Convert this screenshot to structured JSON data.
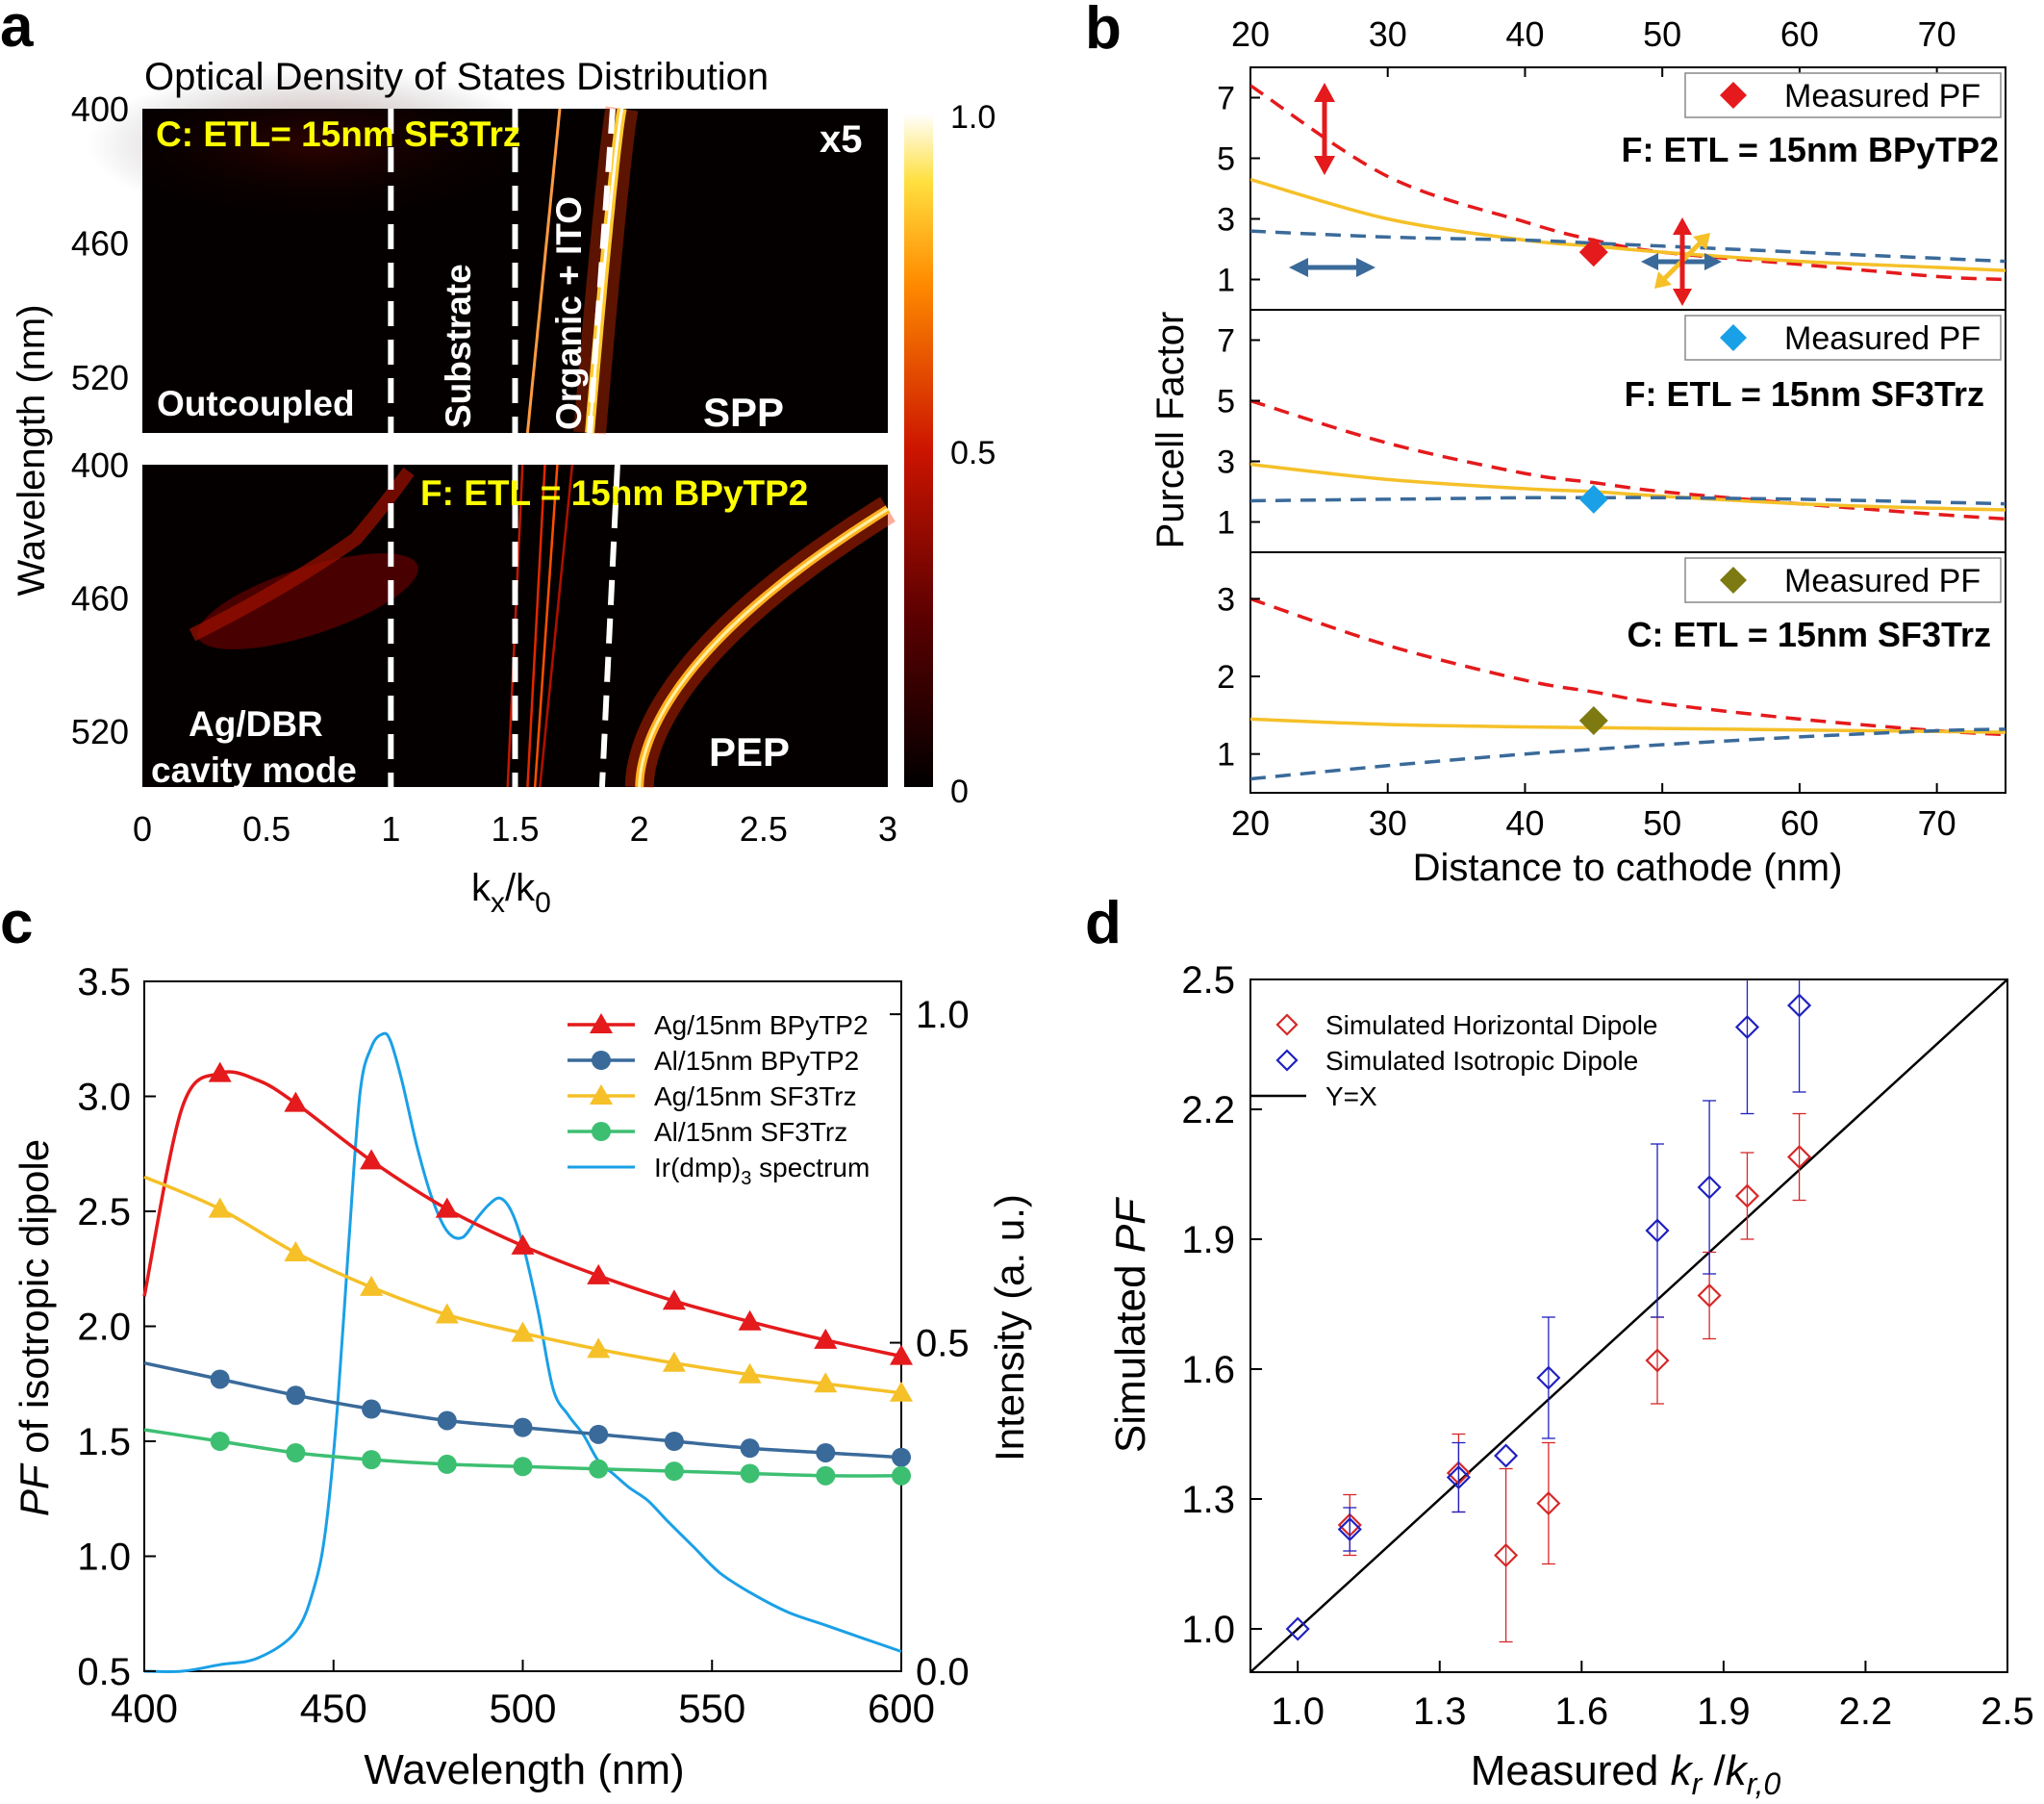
{
  "panels": {
    "a": "a",
    "b": "b",
    "c": "c",
    "d": "d"
  },
  "colors": {
    "red": "#e41a1c",
    "navy": "#3a6a9a",
    "gold": "#f5c028",
    "green": "#3dbf72",
    "blue": "#1aa0e6",
    "olive": "#7d7a12",
    "dred": "#d62828",
    "dblue": "#2020c0"
  },
  "chart_data": [
    {
      "type": "heatmap",
      "id": "a",
      "title": "Optical Density of States Distribution",
      "xlabel_main": "k",
      "xlabel_sub": "x",
      "xlabel_sep": "/k",
      "xlabel_sub2": "0",
      "ylabel": "Wavelength (nm)",
      "x_ticks": [
        "0",
        "0.5",
        "1",
        "1.5",
        "2",
        "2.5",
        "3"
      ],
      "xlim": [
        0,
        3
      ],
      "y_ticks": [
        "400",
        "460",
        "520"
      ],
      "y_tick_values": [
        400,
        460,
        520
      ],
      "ylim": [
        400,
        545
      ],
      "colorbar": {
        "ticks": [
          "1.0",
          "0.5",
          "0"
        ],
        "range": [
          0,
          1
        ]
      },
      "top": {
        "label": "C: ETL= 15nm SF3Trz",
        "scale_note": "x5",
        "regions": [
          "Outcoupled",
          "Substrate",
          "Organic + ITO",
          "SPP"
        ],
        "boundaries": [
          1.0,
          1.5,
          1.8
        ],
        "mode_kx_at_400": 1.93,
        "mode_kx_at_545": 1.8
      },
      "bottom": {
        "label": "F: ETL = 15nm BPyTP2",
        "regions_line1": "Ag/DBR",
        "regions_line2": "cavity mode",
        "pep_label": "PEP",
        "boundaries": [
          1.0,
          1.5,
          1.85
        ],
        "pep_kx_at_420": 3.0,
        "pep_kx_at_545": 2.0
      }
    },
    {
      "type": "line",
      "id": "b",
      "xlabel": "Distance to cathode (nm)",
      "ylabel": "Purcell Factor",
      "x_ticks": [
        20,
        30,
        40,
        50,
        60,
        70
      ],
      "xlim": [
        20,
        75
      ],
      "legend_label": "Measured PF",
      "subplots": [
        {
          "title": "F: ETL = 15nm BPyTP2",
          "ylim": [
            0,
            8
          ],
          "y_ticks": [
            1,
            3,
            5,
            7
          ],
          "marker_color": "red",
          "x": [
            20,
            30,
            40,
            45,
            50,
            60,
            70,
            75
          ],
          "series": [
            {
              "name": "horizontal",
              "style": "dashed",
              "color": "red",
              "values": [
                7.4,
                4.4,
                2.9,
                2.3,
                1.9,
                1.5,
                1.1,
                1.0
              ]
            },
            {
              "name": "isotropic",
              "style": "solid",
              "color": "gold",
              "values": [
                4.3,
                3.0,
                2.3,
                2.1,
                1.9,
                1.6,
                1.4,
                1.3
              ]
            },
            {
              "name": "vertical",
              "style": "dashed",
              "color": "navy",
              "values": [
                2.6,
                2.4,
                2.3,
                2.2,
                2.1,
                1.9,
                1.7,
                1.6
              ]
            }
          ],
          "measured": {
            "x": 45,
            "y": 1.9
          }
        },
        {
          "title": "F: ETL = 15nm SF3Trz",
          "ylim": [
            0,
            8
          ],
          "y_ticks": [
            1,
            3,
            5,
            7
          ],
          "marker_color": "blue",
          "x": [
            20,
            30,
            40,
            45,
            50,
            60,
            70,
            75
          ],
          "series": [
            {
              "name": "horizontal",
              "style": "dashed",
              "color": "red",
              "values": [
                5.0,
                3.6,
                2.6,
                2.3,
                2.0,
                1.6,
                1.25,
                1.1
              ]
            },
            {
              "name": "isotropic",
              "style": "solid",
              "color": "gold",
              "values": [
                2.9,
                2.4,
                2.1,
                2.0,
                1.85,
                1.6,
                1.45,
                1.4
              ]
            },
            {
              "name": "vertical",
              "style": "dashed",
              "color": "navy",
              "values": [
                1.7,
                1.75,
                1.8,
                1.8,
                1.8,
                1.75,
                1.65,
                1.6
              ]
            }
          ],
          "measured": {
            "x": 45,
            "y": 1.75
          }
        },
        {
          "title": "C: ETL = 15nm SF3Trz",
          "ylim": [
            0.5,
            3.6
          ],
          "y_ticks": [
            1,
            2,
            3
          ],
          "marker_color": "olive",
          "x": [
            20,
            30,
            40,
            45,
            50,
            60,
            70,
            75
          ],
          "series": [
            {
              "name": "horizontal",
              "style": "dashed",
              "color": "red",
              "values": [
                3.0,
                2.4,
                1.95,
                1.8,
                1.65,
                1.45,
                1.3,
                1.25
              ]
            },
            {
              "name": "isotropic",
              "style": "solid",
              "color": "gold",
              "values": [
                1.45,
                1.38,
                1.35,
                1.34,
                1.33,
                1.31,
                1.29,
                1.28
              ]
            },
            {
              "name": "vertical",
              "style": "dashed",
              "color": "navy",
              "values": [
                0.68,
                0.85,
                1.0,
                1.06,
                1.12,
                1.22,
                1.3,
                1.32
              ]
            }
          ],
          "measured": {
            "x": 45,
            "y": 1.43
          }
        }
      ]
    },
    {
      "type": "line",
      "id": "c",
      "xlabel": "Wavelength (nm)",
      "ylabel_em": "PF",
      "ylabel_rest": " of isotropic dipole",
      "y2label": "Intensity (a. u.)",
      "x_ticks": [
        "400",
        "450",
        "500",
        "550",
        "600"
      ],
      "xlim": [
        400,
        600
      ],
      "y_ticks": [
        "0.5",
        "1.0",
        "1.5",
        "2.0",
        "2.5",
        "3.0",
        "3.5"
      ],
      "ylim": [
        0.5,
        3.5
      ],
      "y2_ticks": [
        "0.0",
        "0.5",
        "1.0"
      ],
      "y2lim": [
        0,
        1.05
      ],
      "marker_x": [
        420,
        440,
        460,
        480,
        500,
        520,
        540,
        560,
        580,
        600
      ],
      "series": [
        {
          "name": "Ag/15nm BPyTP2",
          "marker": "triangle",
          "color": "red",
          "x": [
            400,
            410,
            420,
            430,
            440,
            460,
            480,
            500,
            520,
            540,
            560,
            580,
            600
          ],
          "values": [
            2.13,
            2.95,
            3.1,
            3.07,
            2.97,
            2.72,
            2.51,
            2.35,
            2.22,
            2.11,
            2.02,
            1.94,
            1.87
          ]
        },
        {
          "name": "Al/15nm BPyTP2",
          "marker": "circle",
          "color": "navy",
          "x": [
            400,
            420,
            440,
            460,
            480,
            500,
            520,
            540,
            560,
            580,
            600
          ],
          "values": [
            1.84,
            1.77,
            1.7,
            1.64,
            1.59,
            1.56,
            1.53,
            1.5,
            1.47,
            1.45,
            1.43
          ]
        },
        {
          "name": "Ag/15nm SF3Trz",
          "marker": "triangle",
          "color": "gold",
          "x": [
            400,
            420,
            440,
            460,
            480,
            500,
            520,
            540,
            560,
            580,
            600
          ],
          "values": [
            2.65,
            2.51,
            2.32,
            2.17,
            2.05,
            1.97,
            1.9,
            1.84,
            1.79,
            1.75,
            1.71
          ]
        },
        {
          "name": "Al/15nm SF3Trz",
          "marker": "circle",
          "color": "green",
          "x": [
            400,
            420,
            440,
            460,
            480,
            500,
            520,
            540,
            560,
            580,
            600
          ],
          "values": [
            1.55,
            1.5,
            1.45,
            1.42,
            1.4,
            1.39,
            1.38,
            1.37,
            1.36,
            1.35,
            1.35
          ]
        }
      ],
      "spectrum": {
        "name_pre": "Ir(dmp)",
        "name_sub": "3",
        "name_post": " spectrum",
        "color": "blue",
        "x": [
          400,
          410,
          420,
          430,
          440,
          445,
          448,
          451,
          454,
          457,
          460,
          463,
          465,
          468,
          472,
          476,
          480,
          484,
          488,
          491,
          494,
          497,
          500,
          504,
          508,
          512,
          516,
          520,
          524,
          528,
          533,
          538,
          545,
          552,
          560,
          570,
          580,
          590,
          600
        ],
        "values": [
          0.0,
          0.0,
          0.01,
          0.02,
          0.06,
          0.13,
          0.22,
          0.4,
          0.65,
          0.88,
          0.95,
          0.97,
          0.96,
          0.9,
          0.8,
          0.72,
          0.67,
          0.66,
          0.69,
          0.71,
          0.72,
          0.7,
          0.65,
          0.55,
          0.43,
          0.39,
          0.36,
          0.32,
          0.3,
          0.28,
          0.26,
          0.23,
          0.19,
          0.15,
          0.12,
          0.09,
          0.07,
          0.05,
          0.03
        ]
      }
    },
    {
      "type": "scatter",
      "id": "d",
      "xlabel_pre": "Measured ",
      "xlabel_k1": "k",
      "xlabel_s1": "r",
      "xlabel_mid": " /",
      "xlabel_k2": "k",
      "xlabel_s2": "r,0",
      "ylabel_pre": "Simulated ",
      "ylabel_em": "PF",
      "x_ticks": [
        "1.0",
        "1.3",
        "1.6",
        "1.9",
        "2.2",
        "2.5"
      ],
      "y_ticks": [
        "1.0",
        "1.3",
        "1.6",
        "1.9",
        "2.2",
        "2.5"
      ],
      "xlim": [
        0.9,
        2.5
      ],
      "ylim": [
        0.9,
        2.5
      ],
      "line_label": "Y=X",
      "series": [
        {
          "name": "Simulated Horizontal Dipole",
          "color": "dred",
          "x": [
            1.11,
            1.34,
            1.44,
            1.53,
            1.76,
            1.87,
            1.95,
            2.06
          ],
          "values": [
            1.24,
            1.36,
            1.17,
            1.29,
            1.62,
            1.77,
            2.0,
            2.09
          ],
          "err": [
            0.07,
            0.09,
            0.2,
            0.14,
            0.1,
            0.1,
            0.1,
            0.1
          ]
        },
        {
          "name": "Simulated Isotropic Dipole",
          "color": "dblue",
          "x": [
            1.0,
            1.11,
            1.34,
            1.44,
            1.53,
            1.76,
            1.87,
            1.95,
            2.06
          ],
          "values": [
            1.0,
            1.23,
            1.35,
            1.4,
            1.58,
            1.92,
            2.02,
            2.39,
            2.44
          ],
          "err": [
            0.0,
            0.05,
            0.08,
            0.0,
            0.14,
            0.2,
            0.2,
            0.2,
            0.2
          ]
        }
      ]
    }
  ]
}
